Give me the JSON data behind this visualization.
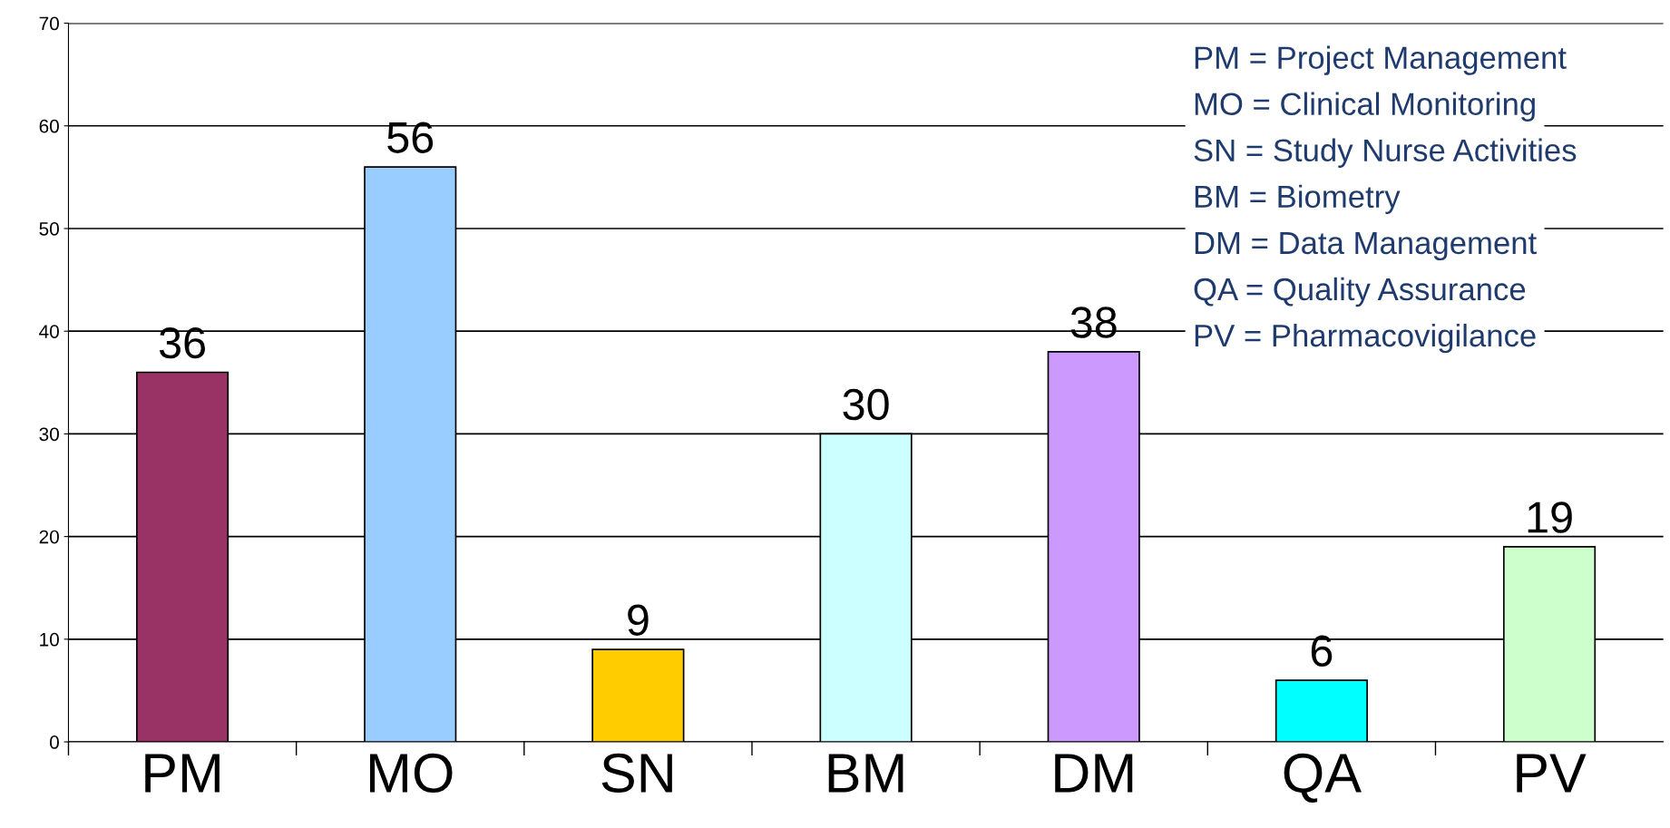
{
  "chart_data": {
    "type": "bar",
    "categories": [
      "PM",
      "MO",
      "SN",
      "BM",
      "DM",
      "QA",
      "PV"
    ],
    "values": [
      36,
      56,
      9,
      30,
      38,
      6,
      19
    ],
    "colors": [
      "#993366",
      "#99ccff",
      "#ffcc00",
      "#ccffff",
      "#cc99ff",
      "#00ffff",
      "#ccffcc"
    ],
    "ylim": [
      0,
      70
    ],
    "yticks": [
      0,
      10,
      20,
      30,
      40,
      50,
      60,
      70
    ],
    "grid": "y",
    "data_labels": true,
    "annotations": [
      "PM = Project Management",
      "MO = Clinical Monitoring",
      "SN = Study Nurse Activities",
      "BM = Biometry",
      "DM = Data Management",
      "QA = Quality Assurance",
      "PV = Pharmacovigilance"
    ]
  }
}
